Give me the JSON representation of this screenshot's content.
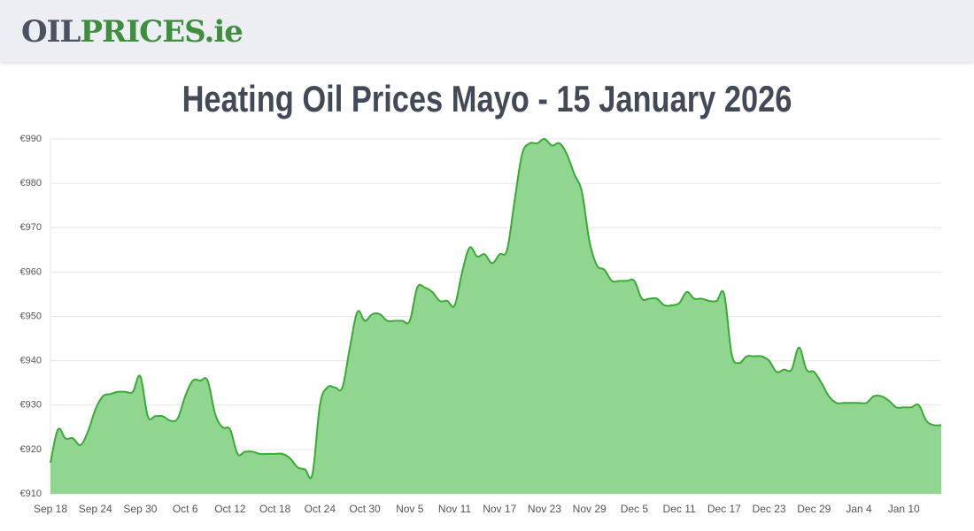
{
  "header": {
    "logo_dark": "OIL",
    "logo_green": "PRICES.ie"
  },
  "chart_data": {
    "type": "area",
    "title": "Heating Oil Prices Mayo - 15 January 2026",
    "color": "#3aaa35",
    "fill": "#90d690",
    "grid": true,
    "categories": [
      "Sep 18",
      null,
      null,
      null,
      null,
      null,
      "Sep 24",
      null,
      null,
      null,
      null,
      null,
      "Sep 30",
      null,
      null,
      null,
      null,
      null,
      "Oct 6",
      null,
      null,
      null,
      null,
      null,
      "Oct 12",
      null,
      null,
      null,
      null,
      null,
      "Oct 18",
      null,
      null,
      null,
      null,
      null,
      "Oct 24",
      null,
      null,
      null,
      null,
      null,
      "Oct 30",
      null,
      null,
      null,
      null,
      null,
      "Nov 5",
      null,
      null,
      null,
      null,
      null,
      "Nov 11",
      null,
      null,
      null,
      null,
      null,
      "Nov 17",
      null,
      null,
      null,
      null,
      null,
      "Nov 23",
      null,
      null,
      null,
      null,
      null,
      "Nov 29",
      null,
      null,
      null,
      null,
      null,
      "Dec 5",
      null,
      null,
      null,
      null,
      null,
      "Dec 11",
      null,
      null,
      null,
      null,
      null,
      "Dec 17",
      null,
      null,
      null,
      null,
      null,
      "Dec 23",
      null,
      null,
      null,
      null,
      null,
      "Dec 29",
      null,
      null,
      null,
      null,
      null,
      "Jan 4",
      null,
      null,
      null,
      null,
      null,
      "Jan 10",
      null,
      null,
      null,
      null,
      null
    ],
    "values": [
      917,
      924.5,
      922.5,
      922.5,
      921,
      924,
      929,
      932,
      932.5,
      933,
      933,
      933,
      936.5,
      927.5,
      927.5,
      927.5,
      926.5,
      927,
      932,
      935.5,
      935.5,
      935.5,
      928,
      925,
      924.5,
      919,
      919.5,
      919.5,
      919,
      919,
      919,
      919,
      918,
      916,
      915.5,
      914.5,
      930,
      934,
      934,
      934,
      943,
      951,
      949,
      950.5,
      950.5,
      949,
      949,
      949,
      949,
      956.5,
      956.5,
      955.5,
      953.5,
      953.5,
      952.5,
      960,
      965.5,
      963.5,
      964,
      962,
      964,
      965,
      976,
      986.5,
      989,
      989,
      990,
      988.5,
      989,
      986.5,
      982,
      978,
      967,
      961.5,
      960.5,
      958,
      958,
      958,
      958,
      954,
      954,
      954,
      952.5,
      952.5,
      953,
      955.5,
      954,
      954,
      953.5,
      953.5,
      955,
      941.5,
      939.5,
      941,
      941,
      941,
      940,
      937.5,
      938,
      938,
      943,
      938,
      937.5,
      935,
      932,
      930.5,
      930.5,
      930.5,
      930.5,
      930.5,
      932,
      932,
      931,
      929.5,
      929.5,
      929.5,
      930,
      926.5,
      925.5,
      925.5
    ],
    "ylim": [
      910,
      990
    ],
    "yticks": [
      {
        "value": 910,
        "label": "€910"
      },
      {
        "value": 920,
        "label": "€920"
      },
      {
        "value": 930,
        "label": "€930"
      },
      {
        "value": 940,
        "label": "€940"
      },
      {
        "value": 950,
        "label": "€950"
      },
      {
        "value": 960,
        "label": "€960"
      },
      {
        "value": 970,
        "label": "€970"
      },
      {
        "value": 980,
        "label": "€980"
      },
      {
        "value": 990,
        "label": "€990"
      }
    ]
  }
}
